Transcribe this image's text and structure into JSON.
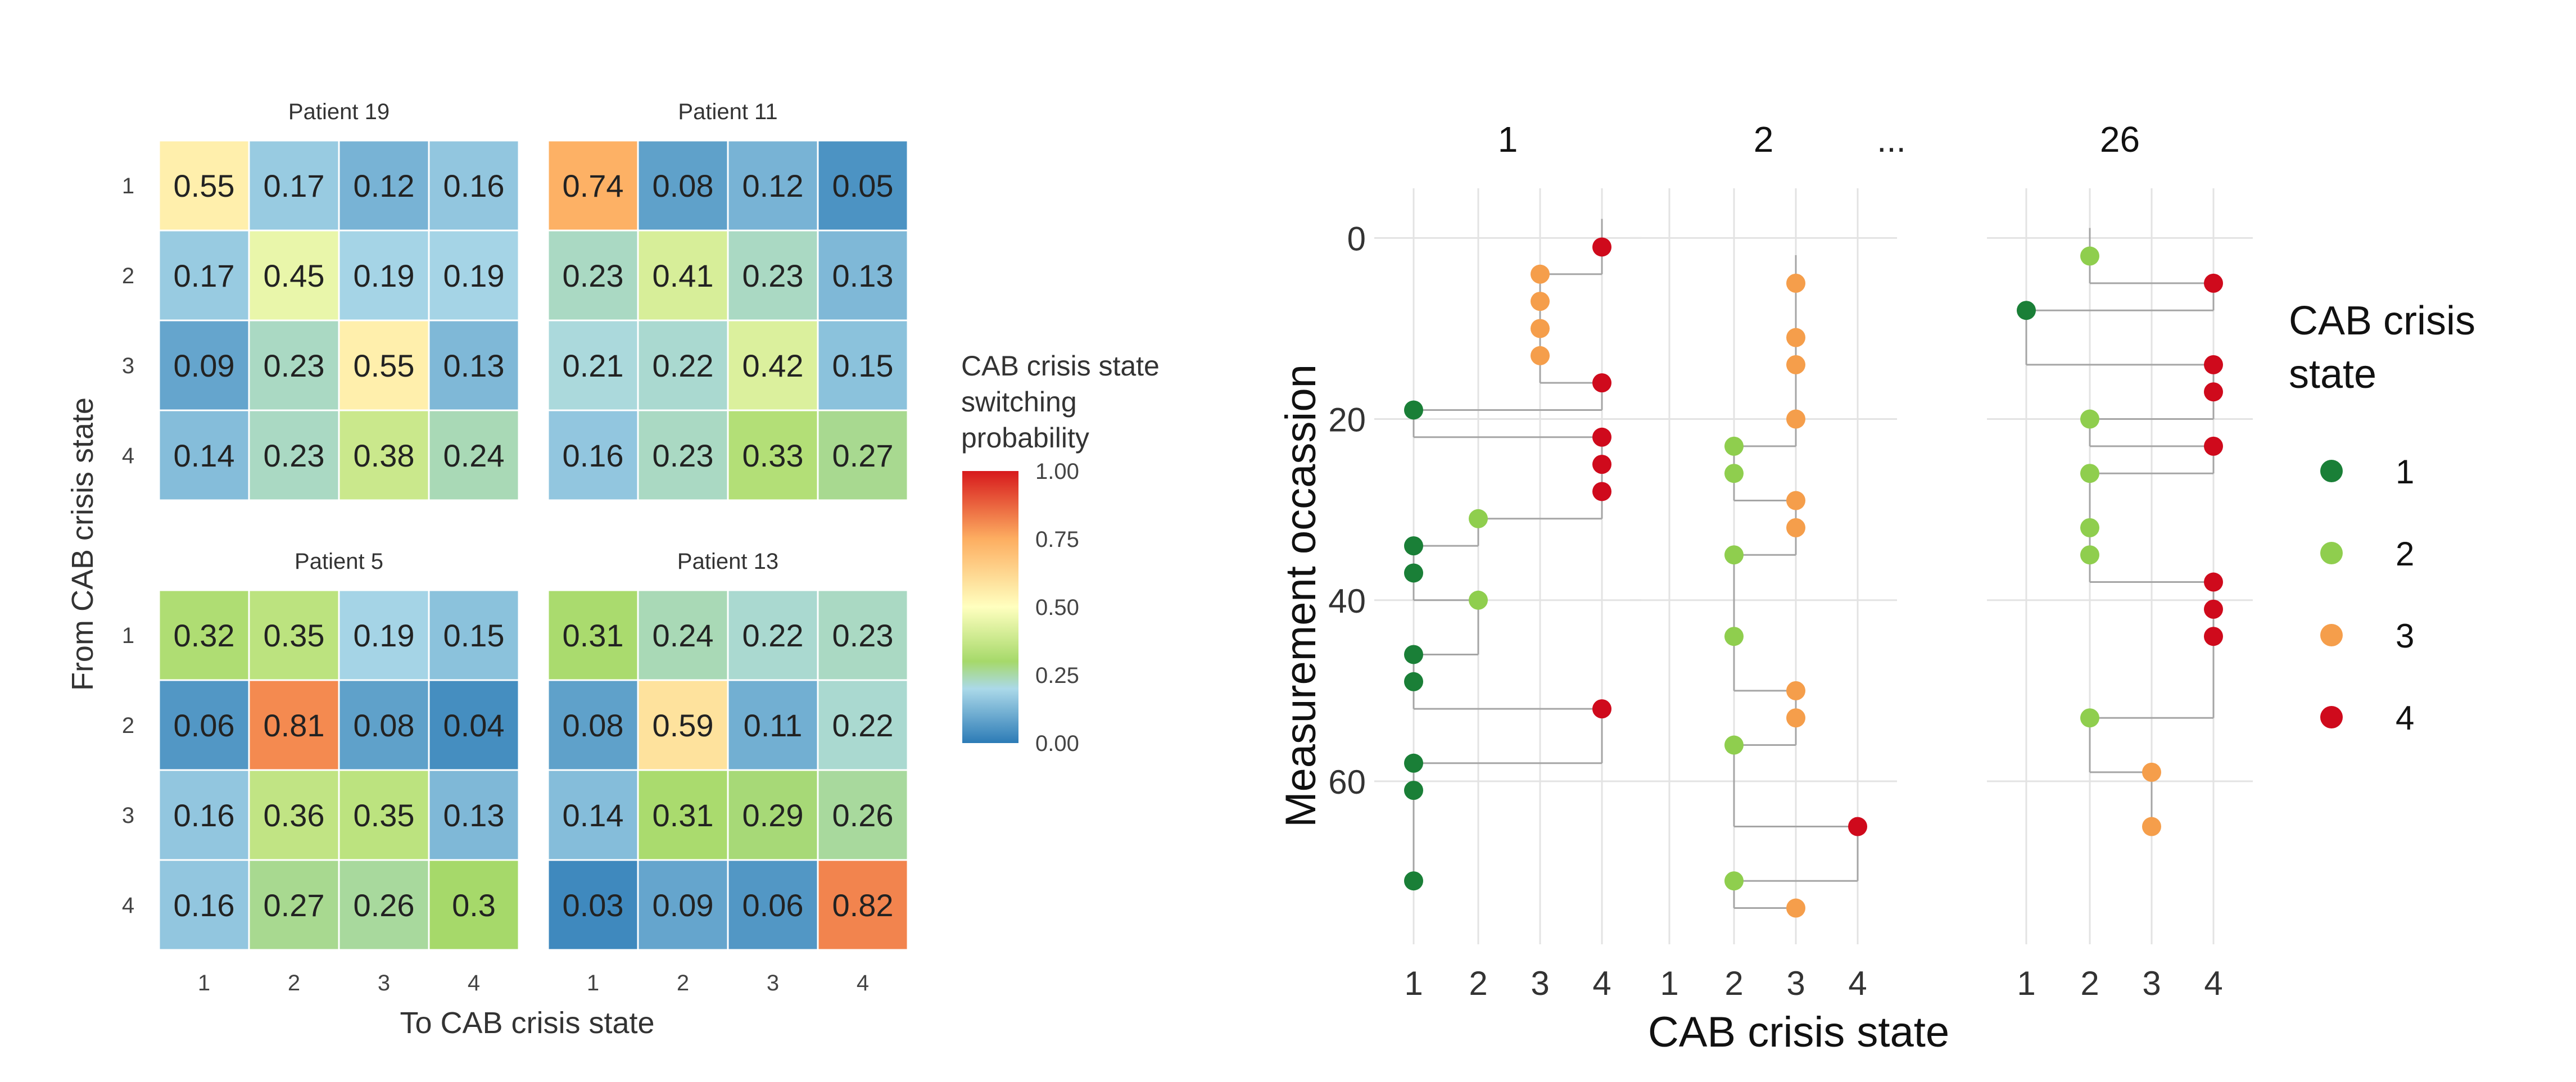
{
  "chart_data": [
    {
      "type": "heatmap",
      "xlabel": "To CAB crisis state",
      "ylabel": "From CAB crisis state",
      "x_ticks": [
        "1",
        "2",
        "3",
        "4"
      ],
      "y_ticks": [
        "1",
        "2",
        "3",
        "4"
      ],
      "legend": {
        "title": [
          "CAB crisis state",
          "switching",
          "probability"
        ],
        "ticks": [
          "1.00",
          "0.75",
          "0.50",
          "0.25",
          "0.00"
        ],
        "range": [
          0,
          1
        ],
        "colors": [
          "#2c7bb6",
          "#abd9e9",
          "#a6d96a",
          "#ffffbf",
          "#fdae61",
          "#d7191c"
        ]
      },
      "panels": [
        {
          "title": "Patient 19",
          "values": [
            [
              0.55,
              0.17,
              0.12,
              0.16
            ],
            [
              0.17,
              0.45,
              0.19,
              0.19
            ],
            [
              0.09,
              0.23,
              0.55,
              0.13
            ],
            [
              0.14,
              0.23,
              0.38,
              0.24
            ]
          ]
        },
        {
          "title": "Patient 11",
          "values": [
            [
              0.74,
              0.08,
              0.12,
              0.05
            ],
            [
              0.23,
              0.41,
              0.23,
              0.13
            ],
            [
              0.21,
              0.22,
              0.42,
              0.15
            ],
            [
              0.16,
              0.23,
              0.33,
              0.27
            ]
          ]
        },
        {
          "title": "Patient 5",
          "values": [
            [
              0.32,
              0.35,
              0.19,
              0.15
            ],
            [
              0.06,
              0.81,
              0.08,
              0.04
            ],
            [
              0.16,
              0.36,
              0.35,
              0.13
            ],
            [
              0.16,
              0.27,
              0.26,
              0.3
            ]
          ]
        },
        {
          "title": "Patient 13",
          "values": [
            [
              0.31,
              0.24,
              0.22,
              0.23
            ],
            [
              0.08,
              0.59,
              0.11,
              0.22
            ],
            [
              0.14,
              0.31,
              0.29,
              0.26
            ],
            [
              0.03,
              0.09,
              0.06,
              0.82
            ]
          ]
        }
      ]
    },
    {
      "type": "scatter",
      "xlabel": "CAB crisis state",
      "ylabel": "Measurement occassion",
      "x_ticks": [
        "1",
        "2",
        "3",
        "4"
      ],
      "y_ticks": [
        "0",
        "20",
        "40",
        "60"
      ],
      "ylim": [
        -3,
        78
      ],
      "y_reversed": true,
      "ellipsis_label": "...",
      "legend": {
        "title": [
          "CAB crisis",
          "state"
        ],
        "entries": [
          {
            "label": "1",
            "color": "#1a7f37"
          },
          {
            "label": "2",
            "color": "#8fce4e"
          },
          {
            "label": "3",
            "color": "#f59e4b"
          },
          {
            "label": "4",
            "color": "#cf0a1c"
          }
        ]
      },
      "panels": [
        {
          "title": "1",
          "points": [
            {
              "occ": 1,
              "state": 4
            },
            {
              "occ": 4,
              "state": 3
            },
            {
              "occ": 7,
              "state": 3
            },
            {
              "occ": 10,
              "state": 3
            },
            {
              "occ": 13,
              "state": 3
            },
            {
              "occ": 16,
              "state": 4
            },
            {
              "occ": 19,
              "state": 1
            },
            {
              "occ": 22,
              "state": 4
            },
            {
              "occ": 25,
              "state": 4
            },
            {
              "occ": 28,
              "state": 4
            },
            {
              "occ": 31,
              "state": 2
            },
            {
              "occ": 34,
              "state": 1
            },
            {
              "occ": 37,
              "state": 1
            },
            {
              "occ": 40,
              "state": 2
            },
            {
              "occ": 46,
              "state": 1
            },
            {
              "occ": 49,
              "state": 1
            },
            {
              "occ": 52,
              "state": 4
            },
            {
              "occ": 58,
              "state": 1
            },
            {
              "occ": 61,
              "state": 1
            },
            {
              "occ": 71,
              "state": 1
            }
          ]
        },
        {
          "title": "2",
          "points": [
            {
              "occ": 5,
              "state": 3
            },
            {
              "occ": 11,
              "state": 3
            },
            {
              "occ": 14,
              "state": 3
            },
            {
              "occ": 20,
              "state": 3
            },
            {
              "occ": 23,
              "state": 2
            },
            {
              "occ": 26,
              "state": 2
            },
            {
              "occ": 29,
              "state": 3
            },
            {
              "occ": 32,
              "state": 3
            },
            {
              "occ": 35,
              "state": 2
            },
            {
              "occ": 44,
              "state": 2
            },
            {
              "occ": 50,
              "state": 3
            },
            {
              "occ": 53,
              "state": 3
            },
            {
              "occ": 56,
              "state": 2
            },
            {
              "occ": 65,
              "state": 4
            },
            {
              "occ": 71,
              "state": 2
            },
            {
              "occ": 74,
              "state": 3
            }
          ]
        },
        {
          "title": "26",
          "points": [
            {
              "occ": 2,
              "state": 2
            },
            {
              "occ": 5,
              "state": 4
            },
            {
              "occ": 8,
              "state": 1
            },
            {
              "occ": 14,
              "state": 4
            },
            {
              "occ": 17,
              "state": 4
            },
            {
              "occ": 20,
              "state": 2
            },
            {
              "occ": 23,
              "state": 4
            },
            {
              "occ": 26,
              "state": 2
            },
            {
              "occ": 32,
              "state": 2
            },
            {
              "occ": 35,
              "state": 2
            },
            {
              "occ": 38,
              "state": 4
            },
            {
              "occ": 41,
              "state": 4
            },
            {
              "occ": 44,
              "state": 4
            },
            {
              "occ": 53,
              "state": 2
            },
            {
              "occ": 59,
              "state": 3
            },
            {
              "occ": 65,
              "state": 3
            }
          ]
        }
      ]
    }
  ]
}
